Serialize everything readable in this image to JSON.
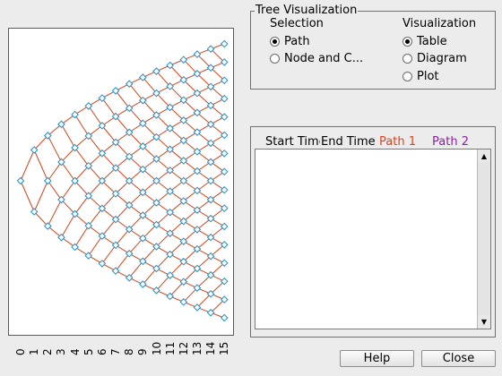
{
  "group_box": {
    "title": "Tree Visualization",
    "selection": {
      "heading": "Selection",
      "options": [
        {
          "label": "Path",
          "checked": true
        },
        {
          "label": "Node and C...",
          "checked": false
        }
      ]
    },
    "visualization": {
      "heading": "Visualization",
      "options": [
        {
          "label": "Table",
          "checked": true
        },
        {
          "label": "Diagram",
          "checked": false
        },
        {
          "label": "Plot",
          "checked": false
        }
      ]
    }
  },
  "table": {
    "columns": [
      {
        "label": "Start Time",
        "color": "#000000"
      },
      {
        "label": "End Time",
        "color": "#000000"
      },
      {
        "label": "Path 1",
        "color": "#e2401b"
      },
      {
        "label": "Path 2",
        "color": "#8e1fa3"
      }
    ],
    "rows": []
  },
  "tree_plot": {
    "x_tick_labels": [
      "0",
      "1",
      "2",
      "3",
      "4",
      "5",
      "6",
      "7",
      "8",
      "9",
      "10",
      "11",
      "12",
      "13",
      "14",
      "15"
    ],
    "levels": 15,
    "edge_color": "#d2441b",
    "node_color": "#1a8fcf"
  },
  "buttons": {
    "help": "Help",
    "close": "Close"
  }
}
